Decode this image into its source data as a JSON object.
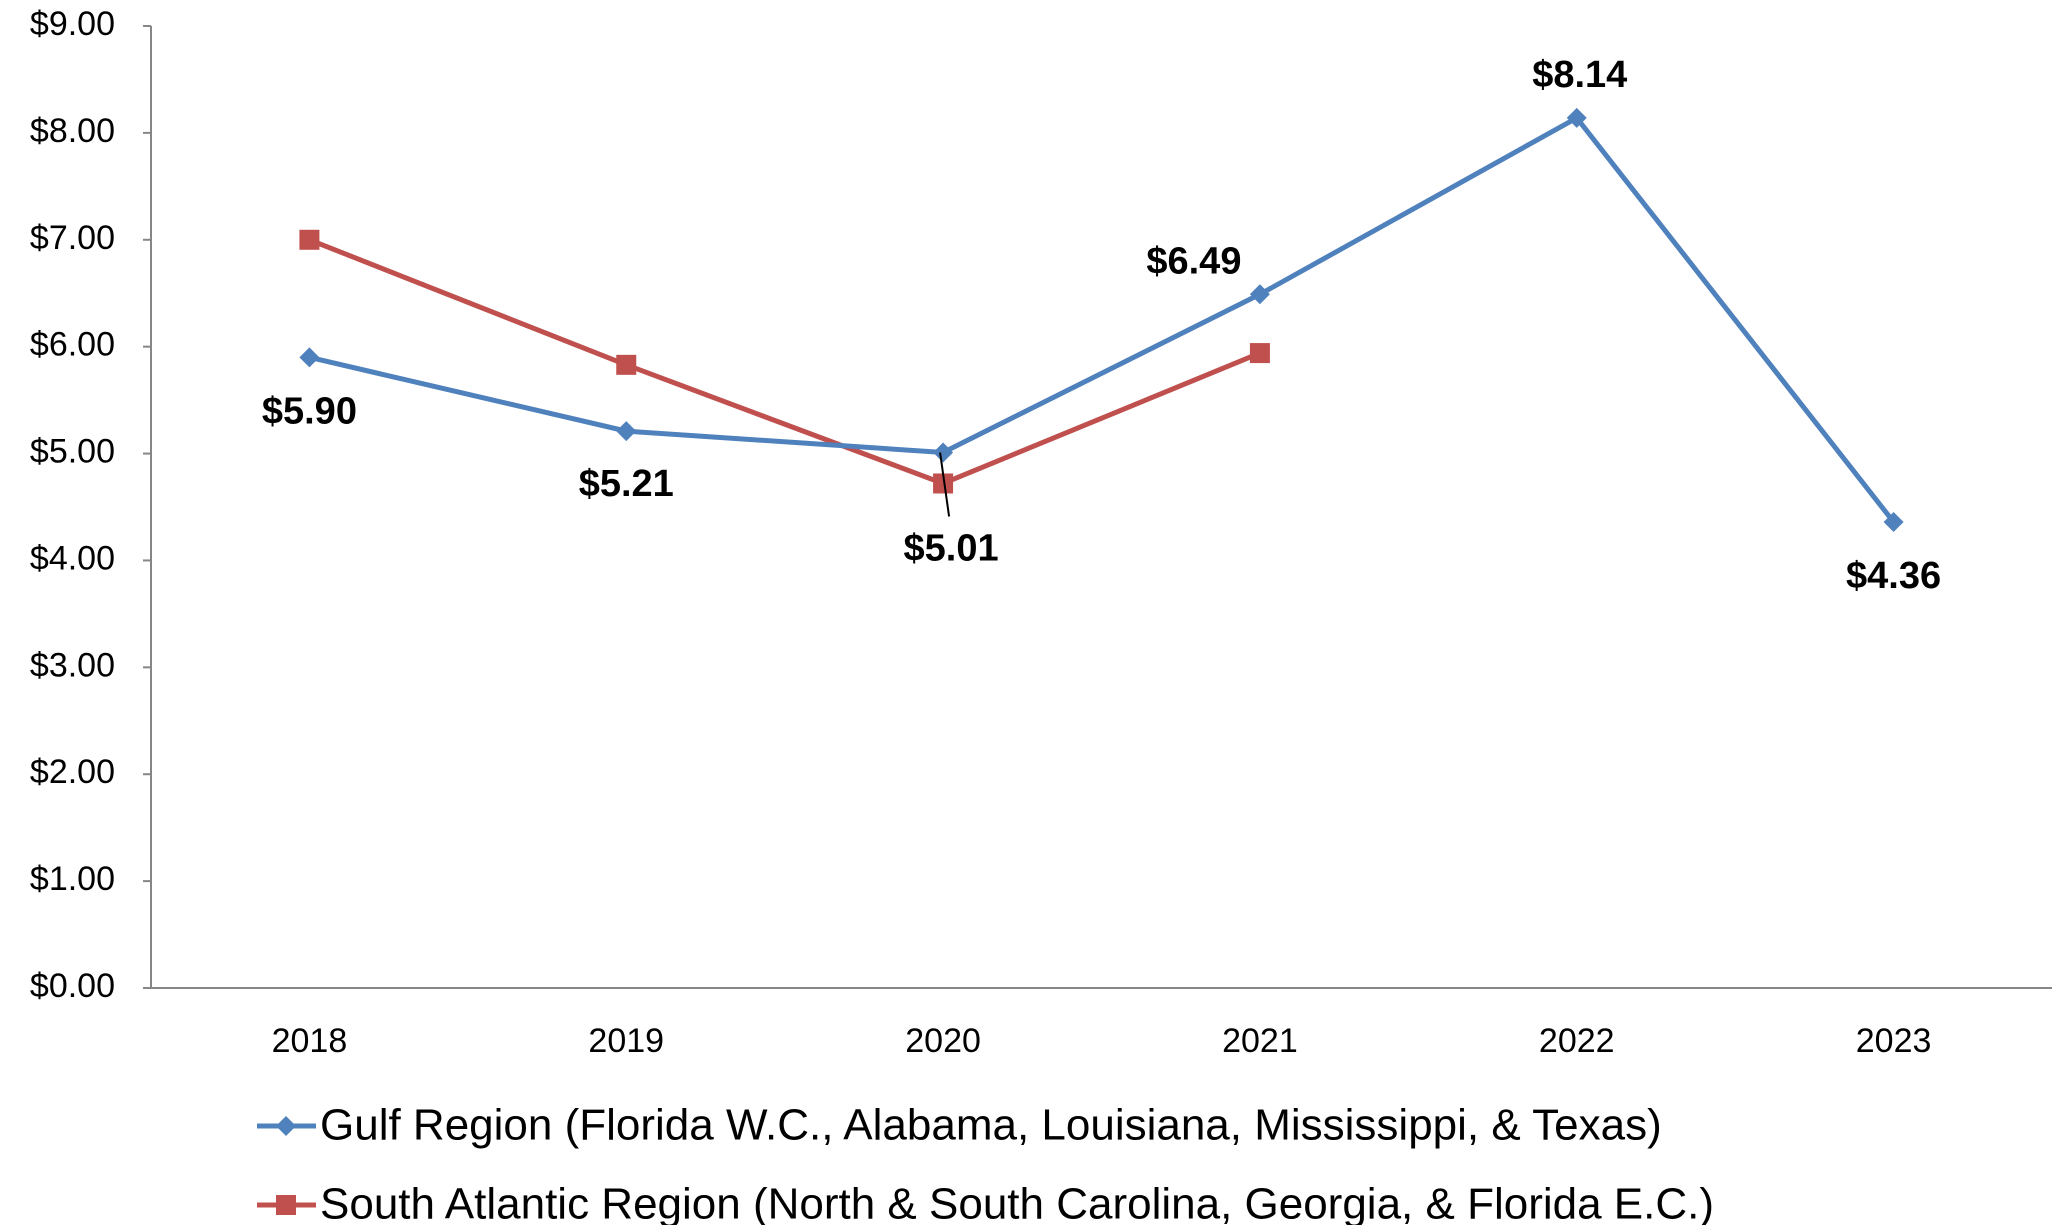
{
  "chart_data": {
    "type": "line",
    "categories": [
      "2018",
      "2019",
      "2020",
      "2021",
      "2022",
      "2023"
    ],
    "series": [
      {
        "name": "Gulf Region (Florida W.C., Alabama, Louisiana, Mississippi, & Texas)",
        "color": "#4f81bd",
        "marker": "diamond",
        "values": [
          5.9,
          5.21,
          5.01,
          6.49,
          8.14,
          4.36
        ],
        "value_labels": [
          "$5.90",
          "$5.21",
          "$5.01",
          "$6.49",
          "$8.14",
          "$4.36"
        ]
      },
      {
        "name": "South Atlantic Region (North & South Carolina, Georgia, & Florida E.C.)",
        "color": "#c0504d",
        "marker": "square",
        "values": [
          7.0,
          5.83,
          4.72,
          5.94,
          null,
          null
        ]
      }
    ],
    "ylim": [
      0,
      9
    ],
    "yticks": [
      {
        "value": 0,
        "label": "$0.00"
      },
      {
        "value": 1,
        "label": "$1.00"
      },
      {
        "value": 2,
        "label": "$2.00"
      },
      {
        "value": 3,
        "label": "$3.00"
      },
      {
        "value": 4,
        "label": "$4.00"
      },
      {
        "value": 5,
        "label": "$5.00"
      },
      {
        "value": 6,
        "label": "$6.00"
      },
      {
        "value": 7,
        "label": "$7.00"
      },
      {
        "value": 8,
        "label": "$8.00"
      },
      {
        "value": 9,
        "label": "$9.00"
      }
    ],
    "grid": false,
    "legend": "bottom"
  }
}
